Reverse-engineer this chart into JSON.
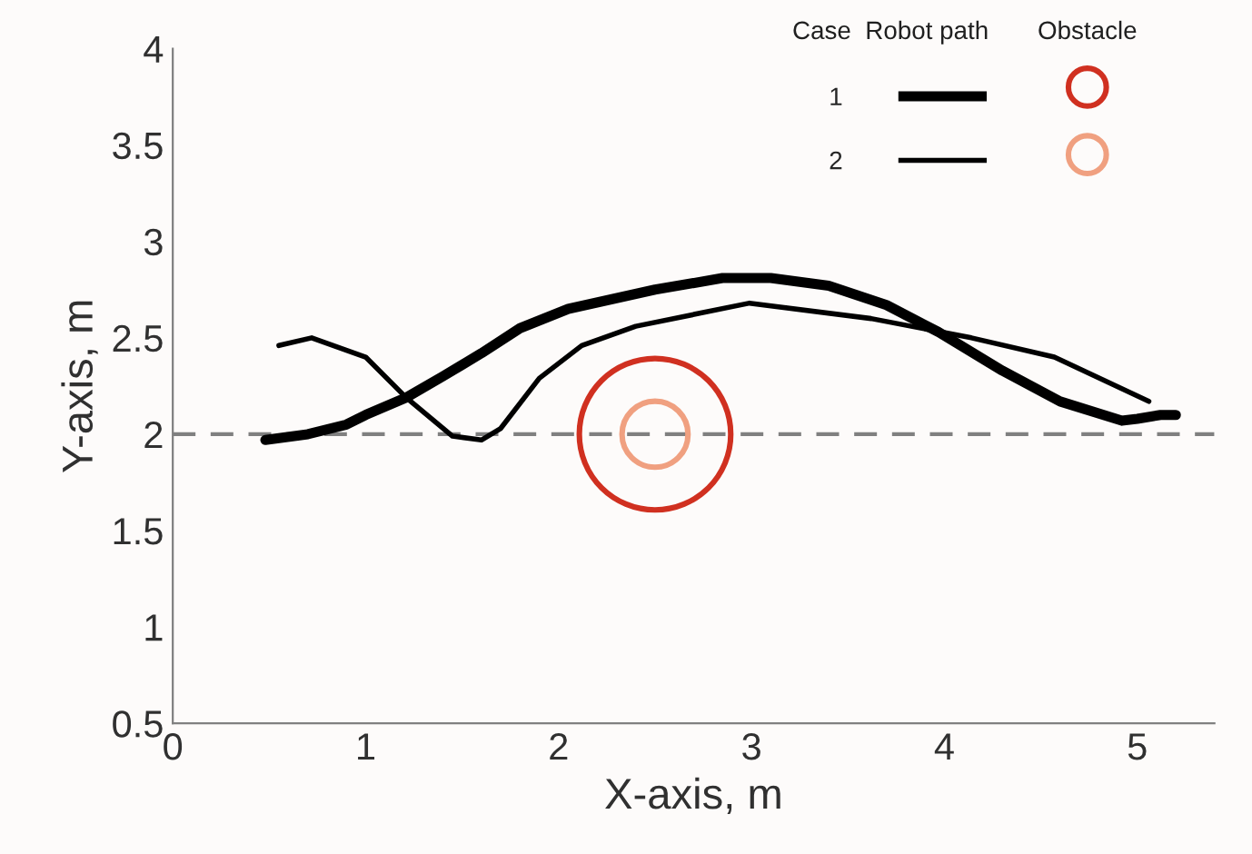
{
  "chart_data": {
    "type": "line",
    "xlabel": "X-axis, m",
    "ylabel": "Y-axis, m",
    "xlim": [
      0,
      5.4
    ],
    "ylim": [
      0.5,
      4
    ],
    "xticks": [
      0,
      1,
      2,
      3,
      4,
      5
    ],
    "yticks": [
      0.5,
      1,
      1.5,
      2,
      2.5,
      3,
      3.5,
      4
    ],
    "grid": false,
    "legend": "top right",
    "line_style": "solid",
    "marker": "none",
    "annotations": [
      "Case",
      "Robot path",
      "Obstacle"
    ],
    "ref_lines": [
      {
        "axis": "y",
        "value": 2,
        "color": "#808080",
        "line_style": "dashed"
      }
    ],
    "series": [
      {
        "name": "1",
        "color": "#000000",
        "x": [
          0.48,
          0.7,
          0.9,
          1.0,
          1.21,
          1.4,
          1.6,
          1.8,
          2.05,
          2.5,
          2.85,
          3.1,
          3.4,
          3.7,
          3.97,
          4.3,
          4.6,
          4.92,
          5.0,
          5.12,
          5.2
        ],
        "values": [
          1.97,
          2.0,
          2.05,
          2.1,
          2.19,
          2.3,
          2.42,
          2.55,
          2.65,
          2.75,
          2.81,
          2.81,
          2.77,
          2.67,
          2.53,
          2.33,
          2.17,
          2.07,
          2.08,
          2.1,
          2.1
        ]
      },
      {
        "name": "2",
        "color": "#000000",
        "x": [
          0.55,
          0.72,
          1.0,
          1.21,
          1.45,
          1.6,
          1.7,
          1.9,
          2.12,
          2.4,
          2.99,
          3.62,
          4.14,
          4.57,
          5.06
        ],
        "values": [
          2.46,
          2.5,
          2.4,
          2.19,
          1.99,
          1.97,
          2.03,
          2.29,
          2.46,
          2.56,
          2.68,
          2.6,
          2.5,
          2.4,
          2.17
        ]
      },
      {
        "color": "#d03020",
        "type": "scatter",
        "marker": "circle",
        "x": [
          2.5
        ],
        "values": [
          2
        ],
        "sizes": [
          1
        ]
      },
      {
        "color": "#f0a080",
        "type": "scatter",
        "marker": "circle",
        "x": [
          2.5
        ],
        "values": [
          2
        ],
        "sizes": [
          0.19
        ]
      }
    ]
  }
}
